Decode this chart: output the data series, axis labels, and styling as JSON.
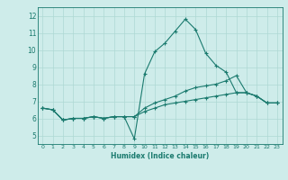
{
  "xlabel": "Humidex (Indice chaleur)",
  "background_color": "#ceecea",
  "grid_color": "#aed8d4",
  "line_color": "#1a7a6e",
  "xlim": [
    -0.5,
    23.5
  ],
  "ylim": [
    4.5,
    12.5
  ],
  "yticks": [
    5,
    6,
    7,
    8,
    9,
    10,
    11,
    12
  ],
  "xticks": [
    0,
    1,
    2,
    3,
    4,
    5,
    6,
    7,
    8,
    9,
    10,
    11,
    12,
    13,
    14,
    15,
    16,
    17,
    18,
    19,
    20,
    21,
    22,
    23
  ],
  "line1_x": [
    0,
    1,
    2,
    3,
    4,
    5,
    6,
    7,
    8,
    9,
    10,
    11,
    12,
    13,
    14,
    15,
    16,
    17,
    18,
    19,
    20,
    21,
    22,
    23
  ],
  "line1_y": [
    6.6,
    6.5,
    5.9,
    6.0,
    6.0,
    6.1,
    6.0,
    6.1,
    6.1,
    4.8,
    8.6,
    9.9,
    10.4,
    11.1,
    11.8,
    11.2,
    9.8,
    9.1,
    8.7,
    7.5,
    7.5,
    7.3,
    6.9,
    6.9
  ],
  "line2_x": [
    0,
    1,
    2,
    3,
    4,
    5,
    6,
    7,
    8,
    9,
    10,
    11,
    12,
    13,
    14,
    15,
    16,
    17,
    18,
    19,
    20,
    21,
    22,
    23
  ],
  "line2_y": [
    6.6,
    6.5,
    5.9,
    6.0,
    6.0,
    6.1,
    6.0,
    6.1,
    6.1,
    6.1,
    6.6,
    6.9,
    7.1,
    7.3,
    7.6,
    7.8,
    7.9,
    8.0,
    8.2,
    8.5,
    7.5,
    7.3,
    6.9,
    6.9
  ],
  "line3_x": [
    0,
    1,
    2,
    3,
    4,
    5,
    6,
    7,
    8,
    9,
    10,
    11,
    12,
    13,
    14,
    15,
    16,
    17,
    18,
    19,
    20,
    21,
    22,
    23
  ],
  "line3_y": [
    6.6,
    6.5,
    5.9,
    6.0,
    6.0,
    6.1,
    6.0,
    6.1,
    6.1,
    6.1,
    6.4,
    6.6,
    6.8,
    6.9,
    7.0,
    7.1,
    7.2,
    7.3,
    7.4,
    7.5,
    7.5,
    7.3,
    6.9,
    6.9
  ]
}
